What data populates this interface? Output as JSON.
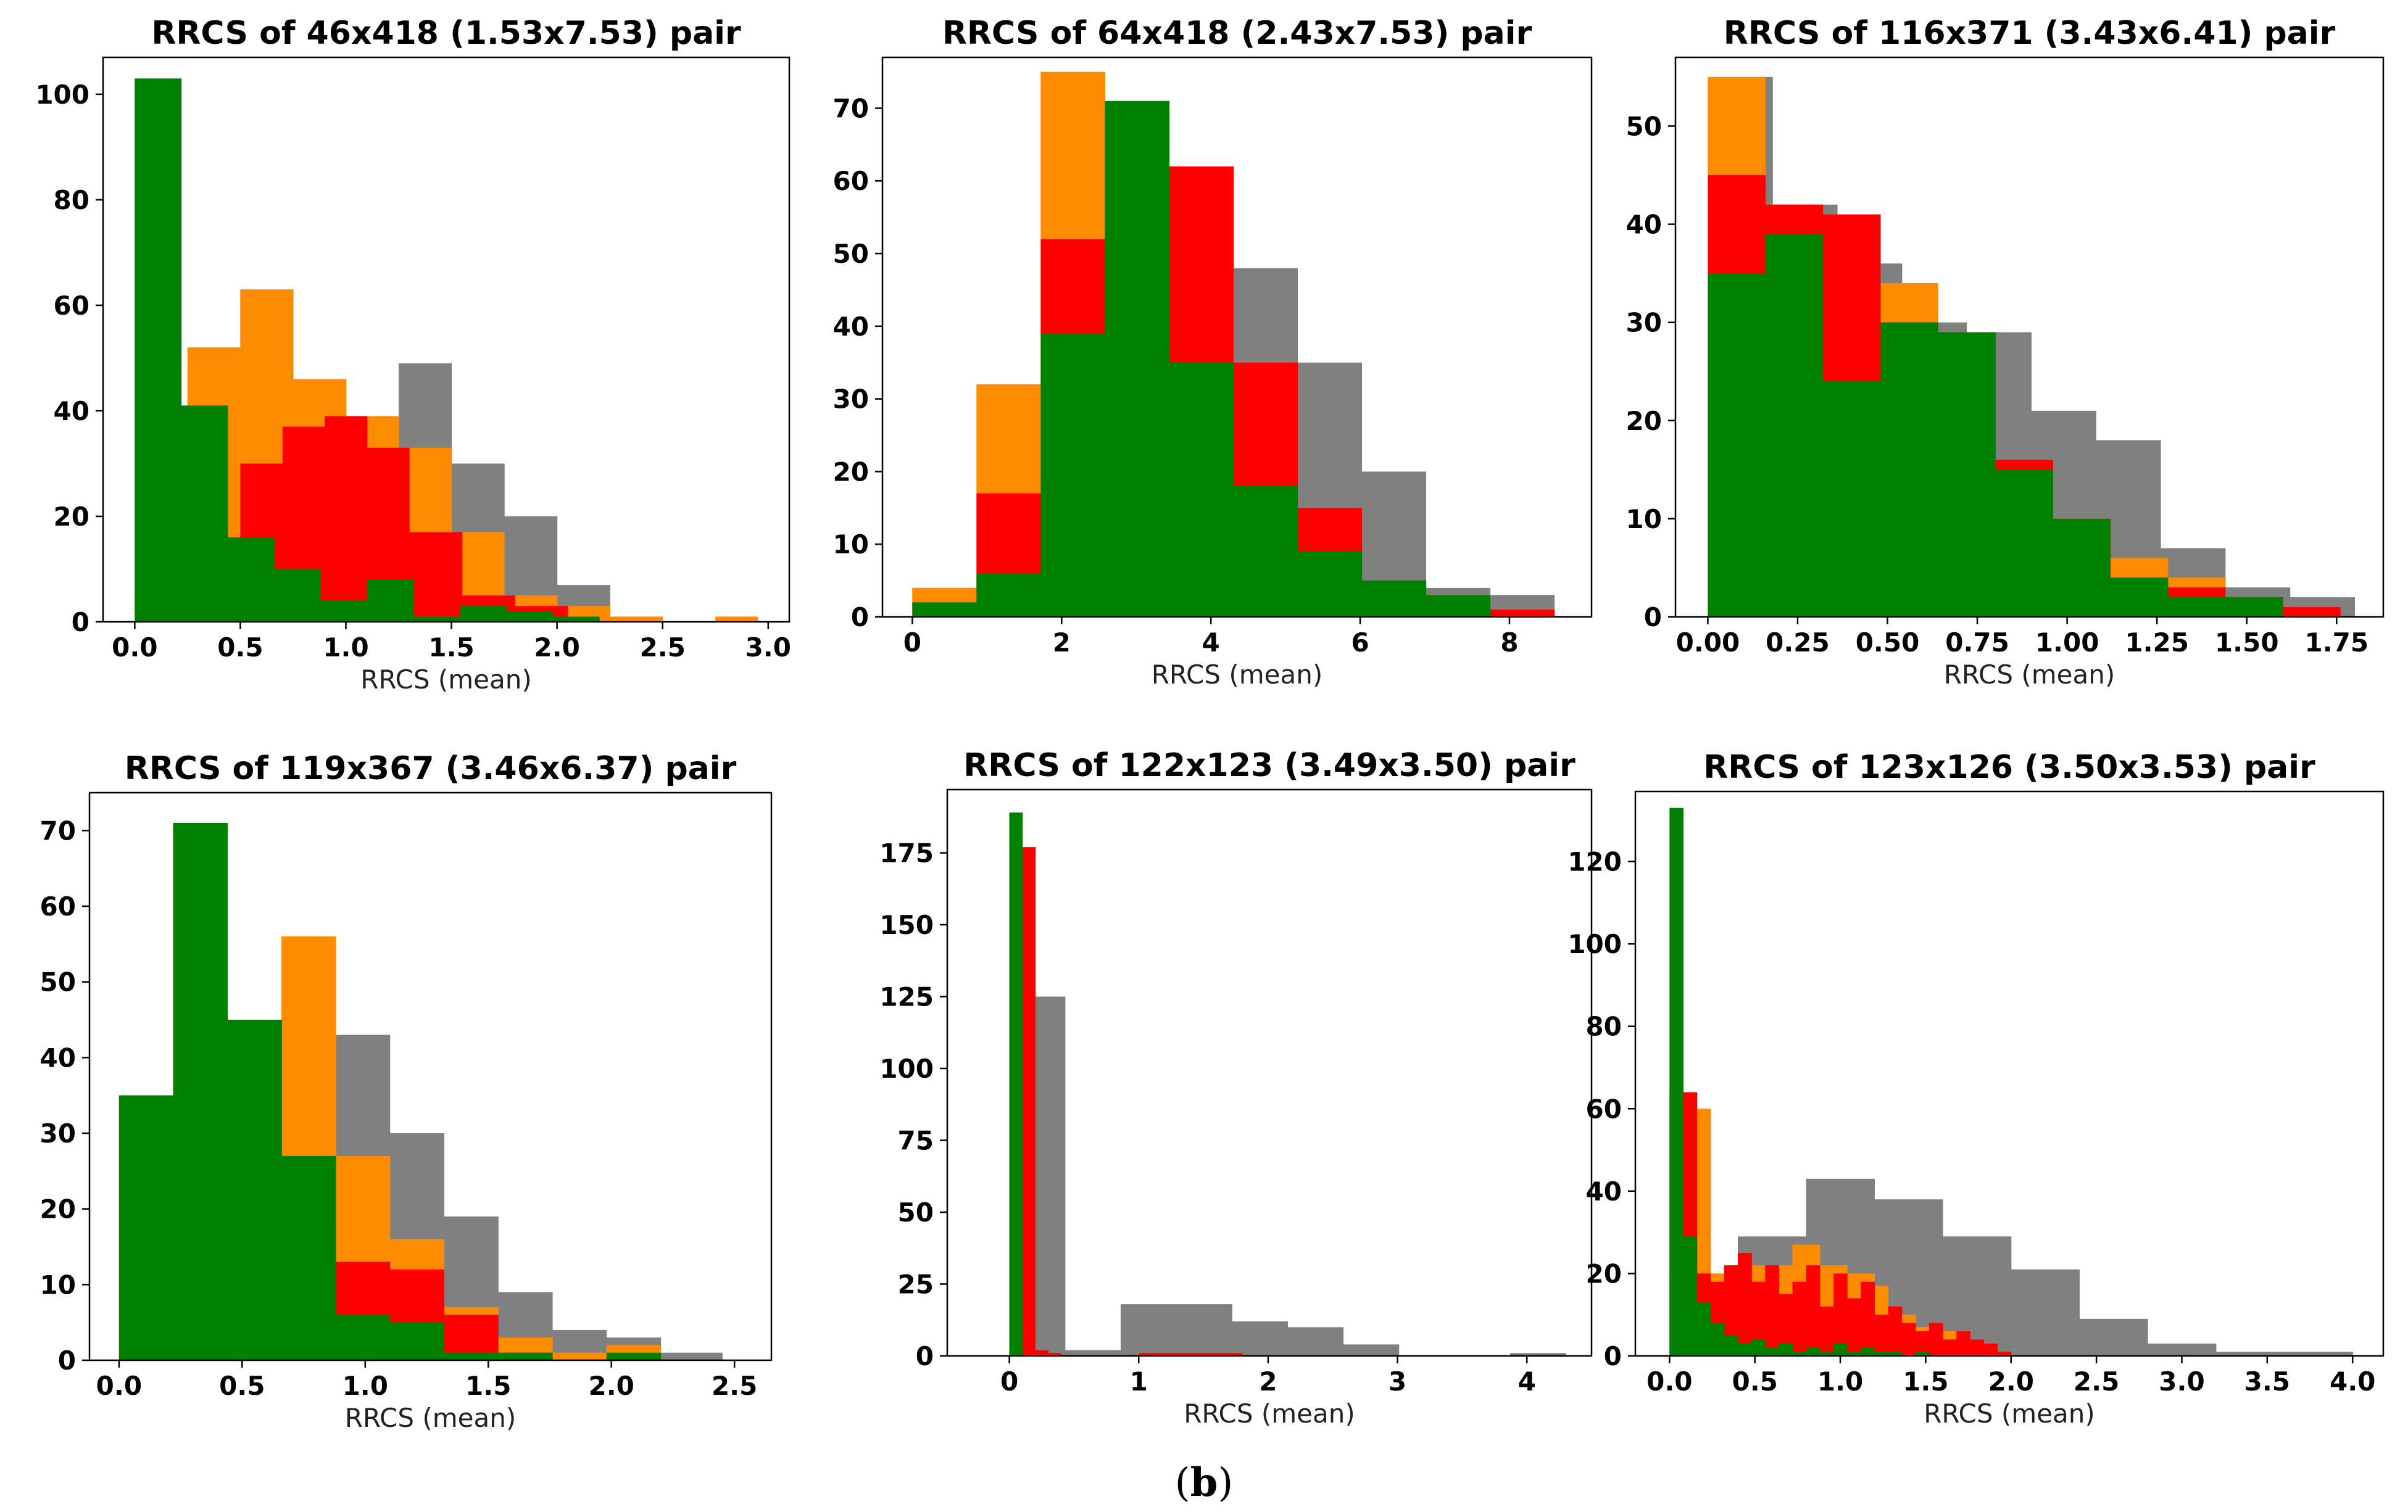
{
  "figure": {
    "caption_open": "(",
    "caption_letter": "b",
    "caption_close": ")"
  },
  "colors": {
    "gray": "#808080",
    "orange": "#ff8c00",
    "red": "#ff0000",
    "green": "#008000"
  },
  "chart_data": [
    {
      "type": "histogram",
      "title": "RRCS of 46x418 (1.53x7.53) pair",
      "xlabel": "RRCS (mean)",
      "xlim": [
        -0.15,
        3.1
      ],
      "ylim": [
        0,
        107
      ],
      "xticks": [
        0,
        0.5,
        1,
        1.5,
        2,
        2.5,
        3
      ],
      "xtick_labels": [
        "0.0",
        "0.5",
        "1.0",
        "1.5",
        "2.0",
        "2.5",
        "3.0"
      ],
      "yticks": [
        0,
        20,
        40,
        60,
        80,
        100
      ],
      "series": [
        {
          "name": "gray",
          "color": "gray",
          "edges": [
            0,
            0.25,
            0.5,
            0.75,
            1.0,
            1.25,
            1.5,
            1.75,
            2.0,
            2.25
          ],
          "values": [
            5,
            52,
            63,
            46,
            39,
            49,
            30,
            20,
            7,
            6
          ]
        },
        {
          "name": "orange",
          "color": "orange",
          "edges": [
            0,
            0.25,
            0.5,
            0.75,
            1.0,
            1.25,
            1.5,
            1.75,
            2.0,
            2.25,
            2.5,
            2.75,
            2.95
          ],
          "values": [
            5,
            52,
            63,
            46,
            39,
            33,
            17,
            5,
            3,
            1,
            0,
            1
          ]
        },
        {
          "name": "red",
          "color": "red",
          "edges": [
            0.3,
            0.5,
            0.7,
            0.9,
            1.1,
            1.3,
            1.55,
            1.8,
            2.05
          ],
          "values": [
            16,
            30,
            37,
            39,
            33,
            17,
            5,
            3
          ]
        },
        {
          "name": "green",
          "color": "green",
          "edges": [
            0,
            0.22,
            0.44,
            0.66,
            0.88,
            1.1,
            1.32,
            1.54,
            1.76,
            1.98,
            2.2
          ],
          "values": [
            103,
            41,
            16,
            10,
            4,
            8,
            1,
            3,
            2,
            1
          ]
        }
      ]
    },
    {
      "type": "histogram",
      "title": "RRCS of 64x418 (2.43x7.53) pair",
      "xlabel": "RRCS (mean)",
      "xlim": [
        -0.4,
        9.1
      ],
      "ylim": [
        0,
        77
      ],
      "xticks": [
        0,
        2,
        4,
        6,
        8
      ],
      "xtick_labels": [
        "0",
        "2",
        "4",
        "6",
        "8"
      ],
      "yticks": [
        0,
        10,
        20,
        30,
        40,
        50,
        60,
        70
      ],
      "series": [
        {
          "name": "gray",
          "color": "gray",
          "edges": [
            0,
            0.86,
            1.72,
            2.58,
            3.44,
            4.3,
            5.16,
            6.02,
            6.88,
            7.74,
            8.6
          ],
          "values": [
            4,
            32,
            75,
            65,
            40,
            48,
            35,
            20,
            4,
            3
          ]
        },
        {
          "name": "orange",
          "color": "orange",
          "edges": [
            0,
            0.86,
            1.72,
            2.58,
            3.44,
            4.3,
            5.16,
            6.02,
            6.88,
            7.74
          ],
          "values": [
            4,
            32,
            75,
            65,
            35,
            15,
            5,
            1,
            3
          ]
        },
        {
          "name": "red",
          "color": "red",
          "edges": [
            0,
            0.86,
            1.72,
            2.58,
            3.44,
            4.3,
            5.16,
            6.02,
            6.88,
            7.74,
            8.6
          ],
          "values": [
            2,
            17,
            52,
            71,
            62,
            35,
            15,
            5,
            2,
            1
          ]
        },
        {
          "name": "green",
          "color": "green",
          "edges": [
            0,
            0.86,
            1.72,
            2.58,
            3.44,
            4.3,
            5.16,
            6.02,
            6.88,
            7.74
          ],
          "values": [
            2,
            6,
            39,
            71,
            35,
            18,
            9,
            5,
            3
          ]
        }
      ]
    },
    {
      "type": "histogram",
      "title": "RRCS of 116x371 (3.43x6.41) pair",
      "xlabel": "RRCS (mean)",
      "xlim": [
        -0.09,
        1.88
      ],
      "ylim": [
        0,
        57
      ],
      "xticks": [
        0,
        0.25,
        0.5,
        0.75,
        1,
        1.25,
        1.5,
        1.75
      ],
      "xtick_labels": [
        "0.00",
        "0.25",
        "0.50",
        "0.75",
        "1.00",
        "1.25",
        "1.50",
        "1.75"
      ],
      "yticks": [
        0,
        10,
        20,
        30,
        40,
        50
      ],
      "series": [
        {
          "name": "gray",
          "color": "gray",
          "edges": [
            0,
            0.18,
            0.36,
            0.54,
            0.72,
            0.9,
            1.08,
            1.26,
            1.44,
            1.62,
            1.8
          ],
          "values": [
            55,
            42,
            36,
            30,
            29,
            21,
            18,
            7,
            3,
            2
          ]
        },
        {
          "name": "orange",
          "color": "orange",
          "edges": [
            0,
            0.16,
            0.32,
            0.48,
            0.64,
            0.8,
            0.96,
            1.12,
            1.28,
            1.44,
            1.6,
            1.76
          ],
          "values": [
            55,
            42,
            41,
            34,
            29,
            16,
            10,
            6,
            4,
            2,
            1
          ]
        },
        {
          "name": "red",
          "color": "red",
          "edges": [
            0,
            0.16,
            0.32,
            0.48,
            0.64,
            0.8,
            0.96,
            1.12,
            1.28,
            1.44,
            1.6,
            1.76
          ],
          "values": [
            45,
            42,
            41,
            30,
            29,
            16,
            10,
            4,
            3,
            2,
            1
          ]
        },
        {
          "name": "green",
          "color": "green",
          "edges": [
            0,
            0.16,
            0.32,
            0.48,
            0.64,
            0.8,
            0.96,
            1.12,
            1.28,
            1.44,
            1.6
          ],
          "values": [
            35,
            39,
            24,
            30,
            29,
            15,
            10,
            4,
            2,
            2
          ]
        }
      ]
    },
    {
      "type": "histogram",
      "title": "RRCS of 119x367 (3.46x6.37) pair",
      "xlabel": "RRCS (mean)",
      "xlim": [
        -0.12,
        2.65
      ],
      "ylim": [
        0,
        75
      ],
      "xticks": [
        0,
        0.5,
        1,
        1.5,
        2,
        2.5
      ],
      "xtick_labels": [
        "0.0",
        "0.5",
        "1.0",
        "1.5",
        "2.0",
        "2.5"
      ],
      "yticks": [
        0,
        10,
        20,
        30,
        40,
        50,
        60,
        70
      ],
      "series": [
        {
          "name": "gray",
          "color": "gray",
          "edges": [
            0,
            0.22,
            0.44,
            0.66,
            0.88,
            1.1,
            1.32,
            1.54,
            1.76,
            1.98,
            2.2,
            2.45
          ],
          "values": [
            35,
            71,
            45,
            56,
            43,
            30,
            19,
            9,
            4,
            3,
            1
          ]
        },
        {
          "name": "orange",
          "color": "orange",
          "edges": [
            0,
            0.22,
            0.44,
            0.66,
            0.88,
            1.1,
            1.32,
            1.54,
            1.76,
            1.98,
            2.2
          ],
          "values": [
            35,
            71,
            45,
            56,
            27,
            16,
            7,
            3,
            1,
            2
          ]
        },
        {
          "name": "red",
          "color": "red",
          "edges": [
            0,
            0.22,
            0.44,
            0.66,
            0.88,
            1.1,
            1.32,
            1.54,
            1.76,
            1.98
          ],
          "values": [
            35,
            71,
            45,
            18,
            13,
            12,
            6,
            1,
            0
          ]
        },
        {
          "name": "green",
          "color": "green",
          "edges": [
            0,
            0.22,
            0.44,
            0.66,
            0.88,
            1.1,
            1.32,
            1.54,
            1.76,
            1.98,
            2.2
          ],
          "values": [
            35,
            71,
            45,
            27,
            6,
            5,
            1,
            1,
            0,
            1
          ]
        }
      ]
    },
    {
      "type": "histogram",
      "title": "RRCS of 122x123 (3.49x3.50) pair",
      "xlabel": "RRCS (mean)",
      "xlim": [
        -0.48,
        4.5
      ],
      "ylim": [
        0,
        197
      ],
      "xticks": [
        0,
        1,
        2,
        3,
        4
      ],
      "xtick_labels": [
        "0",
        "1",
        "2",
        "3",
        "4"
      ],
      "yticks": [
        0,
        25,
        50,
        75,
        100,
        125,
        150,
        175
      ],
      "series": [
        {
          "name": "gray",
          "color": "gray",
          "edges": [
            0,
            0.43,
            0.86,
            1.29,
            1.72,
            2.15,
            2.58,
            3.01,
            3.44,
            3.87,
            4.3
          ],
          "values": [
            125,
            2,
            18,
            18,
            12,
            10,
            4,
            0,
            0,
            1
          ]
        },
        {
          "name": "orange",
          "color": "orange",
          "edges": [
            0,
            0.2,
            0.4,
            1.0,
            1.8
          ],
          "values": [
            177,
            1,
            0,
            1
          ]
        },
        {
          "name": "red",
          "color": "red",
          "edges": [
            0,
            0.1,
            0.2,
            0.3,
            0.4,
            1.0,
            1.8
          ],
          "values": [
            189,
            177,
            2,
            1,
            0,
            1
          ]
        },
        {
          "name": "green",
          "color": "green",
          "edges": [
            0,
            0.1
          ],
          "values": [
            189
          ]
        }
      ]
    },
    {
      "type": "histogram",
      "title": "RRCS of 123x126 (3.50x3.53) pair",
      "xlabel": "RRCS (mean)",
      "xlim": [
        -0.2,
        4.18
      ],
      "ylim": [
        0,
        137
      ],
      "xticks": [
        0,
        0.5,
        1,
        1.5,
        2,
        2.5,
        3,
        3.5,
        4
      ],
      "xtick_labels": [
        "0.0",
        "0.5",
        "1.0",
        "1.5",
        "2.0",
        "2.5",
        "3.0",
        "3.5",
        "4.0"
      ],
      "yticks": [
        0,
        20,
        40,
        60,
        80,
        100,
        120
      ],
      "series": [
        {
          "name": "gray",
          "color": "gray",
          "edges": [
            0,
            0.4,
            0.8,
            1.2,
            1.6,
            2.0,
            2.4,
            2.8,
            3.2,
            3.6,
            4.0
          ],
          "values": [
            20,
            29,
            43,
            38,
            29,
            21,
            9,
            3,
            1,
            1
          ]
        },
        {
          "name": "orange",
          "color": "orange",
          "edges": [
            0,
            0.08,
            0.16,
            0.24,
            0.32,
            0.4,
            0.48,
            0.56,
            0.64,
            0.72,
            0.8,
            0.88,
            0.96,
            1.04,
            1.12,
            1.2,
            1.28,
            1.36,
            1.44,
            1.52,
            1.6,
            1.68,
            1.76,
            1.84,
            1.92,
            2.0
          ],
          "values": [
            133,
            64,
            60,
            20,
            18,
            25,
            22,
            20,
            22,
            27,
            27,
            22,
            22,
            20,
            20,
            17,
            10,
            10,
            7,
            7,
            6,
            6,
            3,
            3,
            1
          ]
        },
        {
          "name": "red",
          "color": "red",
          "edges": [
            0,
            0.08,
            0.16,
            0.24,
            0.32,
            0.4,
            0.48,
            0.56,
            0.64,
            0.72,
            0.8,
            0.88,
            0.96,
            1.04,
            1.12,
            1.2,
            1.28,
            1.36,
            1.44,
            1.52,
            1.6,
            1.68,
            1.76,
            1.84,
            1.92,
            2.0
          ],
          "values": [
            64,
            64,
            20,
            18,
            22,
            25,
            18,
            22,
            15,
            18,
            22,
            12,
            20,
            14,
            18,
            10,
            12,
            8,
            6,
            8,
            4,
            6,
            4,
            3,
            1
          ]
        },
        {
          "name": "green",
          "color": "green",
          "edges": [
            0,
            0.08,
            0.16,
            0.24,
            0.32,
            0.4,
            0.48,
            0.56,
            0.64,
            0.72,
            0.8,
            0.88,
            0.96,
            1.04,
            1.12,
            1.2,
            1.28,
            1.36,
            1.44,
            1.52
          ],
          "values": [
            133,
            29,
            13,
            8,
            5,
            3,
            4,
            2,
            3,
            1,
            2,
            1,
            3,
            1,
            2,
            1,
            1,
            0,
            1
          ]
        }
      ]
    }
  ]
}
